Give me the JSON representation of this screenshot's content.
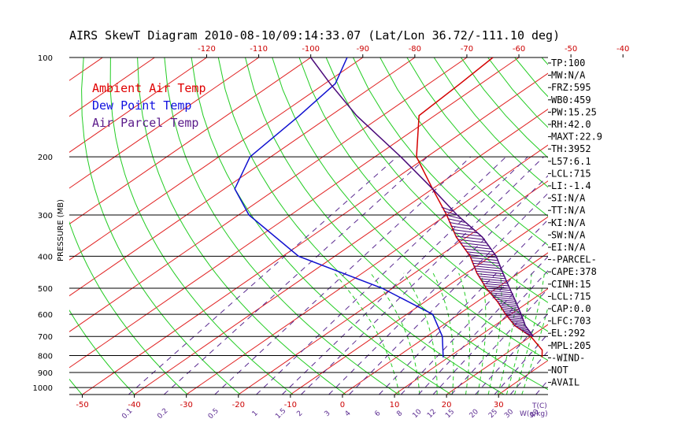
{
  "chart_data": {
    "type": "line",
    "title": "AIRS SkewT Diagram 2010-08-10/09:14:33.07 (Lat/Lon 36.72/-111.10 deg)",
    "ylabel": "PRESSURE (MB)",
    "xlabel": "T(C)",
    "mixing_ratio_unit": "W(g/kg)",
    "pressure_ticks": [
      100,
      200,
      300,
      400,
      500,
      600,
      700,
      800,
      900,
      1000
    ],
    "pressure_labels": [
      "100",
      "200",
      "300",
      "400",
      "500",
      "600",
      "700",
      "800",
      "900",
      "1000"
    ],
    "bottom_temp_ticks": [
      -50,
      -40,
      -30,
      -20,
      -10,
      0,
      10,
      20,
      30
    ],
    "bottom_temp_labels": [
      "-50",
      "-40",
      "-30",
      "-20",
      "-10",
      "0",
      "10",
      "20",
      "30"
    ],
    "top_temp_ticks": [
      -120,
      -110,
      -100,
      -90,
      -80,
      -70,
      -60,
      -50,
      -40
    ],
    "top_temp_labels": [
      "-120",
      "-110",
      "-100",
      "-90",
      "-80",
      "-70",
      "-60",
      "-50",
      "-40"
    ],
    "mixing_ratio_ticks": [
      0.1,
      0.2,
      0.5,
      1,
      1.5,
      2,
      3,
      4,
      6,
      8,
      10,
      12,
      15,
      20,
      25,
      30,
      40
    ],
    "mixing_ratio_labels": [
      "0.1",
      "0.2",
      "0.5",
      "1",
      "1.5",
      "2",
      "3",
      "4",
      "6",
      "8",
      "10",
      "12",
      "15",
      "20",
      "25",
      "30",
      "40"
    ],
    "legend": [
      {
        "label": "Ambient Air Temp",
        "color": "#e00000"
      },
      {
        "label": "Dew Point Temp",
        "color": "#1010e0"
      },
      {
        "label": "Air Parcel Temp",
        "color": "#5a1a8a"
      }
    ],
    "series": [
      {
        "name": "Ambient Air Temp",
        "color": "#d40000",
        "points": [
          {
            "p": 810,
            "t": 28
          },
          {
            "p": 770,
            "t": 26
          },
          {
            "p": 700,
            "t": 20
          },
          {
            "p": 650,
            "t": 14
          },
          {
            "p": 600,
            "t": 9
          },
          {
            "p": 550,
            "t": 4
          },
          {
            "p": 500,
            "t": -2
          },
          {
            "p": 450,
            "t": -8
          },
          {
            "p": 400,
            "t": -14
          },
          {
            "p": 350,
            "t": -22
          },
          {
            "p": 300,
            "t": -30
          },
          {
            "p": 250,
            "t": -40
          },
          {
            "p": 200,
            "t": -52
          },
          {
            "p": 150,
            "t": -63
          },
          {
            "p": 120,
            "t": -64
          },
          {
            "p": 100,
            "t": -65
          }
        ]
      },
      {
        "name": "Dew Point Temp",
        "color": "#1010d0",
        "points": [
          {
            "p": 810,
            "t": 9
          },
          {
            "p": 700,
            "t": 3
          },
          {
            "p": 600,
            "t": -5
          },
          {
            "p": 500,
            "t": -22
          },
          {
            "p": 400,
            "t": -47
          },
          {
            "p": 300,
            "t": -68
          },
          {
            "p": 250,
            "t": -78
          },
          {
            "p": 200,
            "t": -84
          },
          {
            "p": 150,
            "t": -86
          },
          {
            "p": 120,
            "t": -88
          },
          {
            "p": 100,
            "t": -93
          }
        ]
      },
      {
        "name": "Air Parcel Temp",
        "color": "#4a0a7a",
        "points": [
          {
            "p": 700,
            "t": 20.5
          },
          {
            "p": 650,
            "t": 16
          },
          {
            "p": 600,
            "t": 12
          },
          {
            "p": 550,
            "t": 7.5
          },
          {
            "p": 500,
            "t": 2.5
          },
          {
            "p": 450,
            "t": -3
          },
          {
            "p": 400,
            "t": -9
          },
          {
            "p": 350,
            "t": -17
          },
          {
            "p": 300,
            "t": -28
          },
          {
            "p": 250,
            "t": -40
          },
          {
            "p": 200,
            "t": -55
          },
          {
            "p": 150,
            "t": -75
          },
          {
            "p": 120,
            "t": -89
          },
          {
            "p": 100,
            "t": -100
          }
        ]
      }
    ],
    "stats": [
      "TP:100",
      "MW:N/A",
      "FRZ:595",
      "WB0:459",
      "PW:15.25",
      "RH:42.0",
      "MAXT:22.9",
      "TH:3952",
      "L57:6.1",
      "LCL:715",
      "LI:-1.4",
      "SI:N/A",
      "TT:N/A",
      "KI:N/A",
      "SW:N/A",
      "EI:N/A",
      "-PARCEL-",
      "CAPE:378",
      "CINH:15",
      "LCL:715",
      "CAP:0.0",
      "LFC:703",
      "EL:292",
      "MPL:205",
      "-WIND-",
      "NOT",
      "AVAIL"
    ],
    "grid": true
  }
}
